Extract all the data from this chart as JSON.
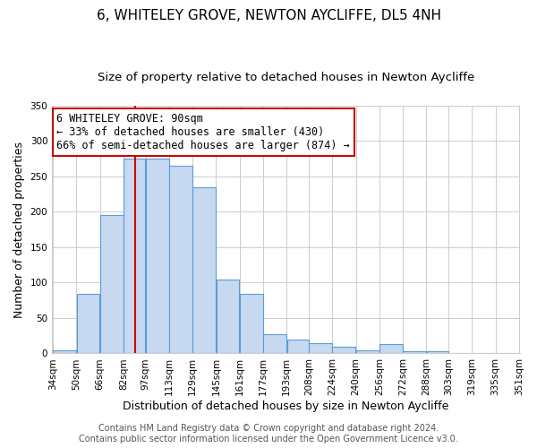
{
  "title": "6, WHITELEY GROVE, NEWTON AYCLIFFE, DL5 4NH",
  "subtitle": "Size of property relative to detached houses in Newton Aycliffe",
  "xlabel": "Distribution of detached houses by size in Newton Aycliffe",
  "ylabel": "Number of detached properties",
  "bins": [
    "34sqm",
    "50sqm",
    "66sqm",
    "82sqm",
    "97sqm",
    "113sqm",
    "129sqm",
    "145sqm",
    "161sqm",
    "177sqm",
    "193sqm",
    "208sqm",
    "224sqm",
    "240sqm",
    "256sqm",
    "272sqm",
    "288sqm",
    "303sqm",
    "319sqm",
    "335sqm",
    "351sqm"
  ],
  "bar_values": [
    5,
    84,
    196,
    275,
    275,
    265,
    235,
    104,
    84,
    27,
    19,
    15,
    10,
    5,
    13,
    3,
    3,
    1,
    1,
    1
  ],
  "bar_left_edges": [
    34,
    50,
    66,
    82,
    97,
    113,
    129,
    145,
    161,
    177,
    193,
    208,
    224,
    240,
    256,
    272,
    288,
    303,
    319,
    335
  ],
  "bar_widths": [
    16,
    16,
    16,
    15,
    16,
    16,
    16,
    16,
    16,
    16,
    15,
    16,
    16,
    16,
    16,
    16,
    15,
    16,
    16,
    16
  ],
  "bar_facecolor": "#c6d9f1",
  "bar_edgecolor": "#5b9bd5",
  "vline_x": 90,
  "vline_color": "#cc0000",
  "annotation_line1": "6 WHITELEY GROVE: 90sqm",
  "annotation_line2": "← 33% of detached houses are smaller (430)",
  "annotation_line3": "66% of semi-detached houses are larger (874) →",
  "ylim": [
    0,
    350
  ],
  "yticks": [
    0,
    50,
    100,
    150,
    200,
    250,
    300,
    350
  ],
  "footer_line1": "Contains HM Land Registry data © Crown copyright and database right 2024.",
  "footer_line2": "Contains public sector information licensed under the Open Government Licence v3.0.",
  "bg_color": "#ffffff",
  "grid_color": "#cccccc",
  "title_fontsize": 11,
  "subtitle_fontsize": 9.5,
  "axis_label_fontsize": 9,
  "tick_fontsize": 7.5,
  "annotation_fontsize": 8.5,
  "footer_fontsize": 7
}
